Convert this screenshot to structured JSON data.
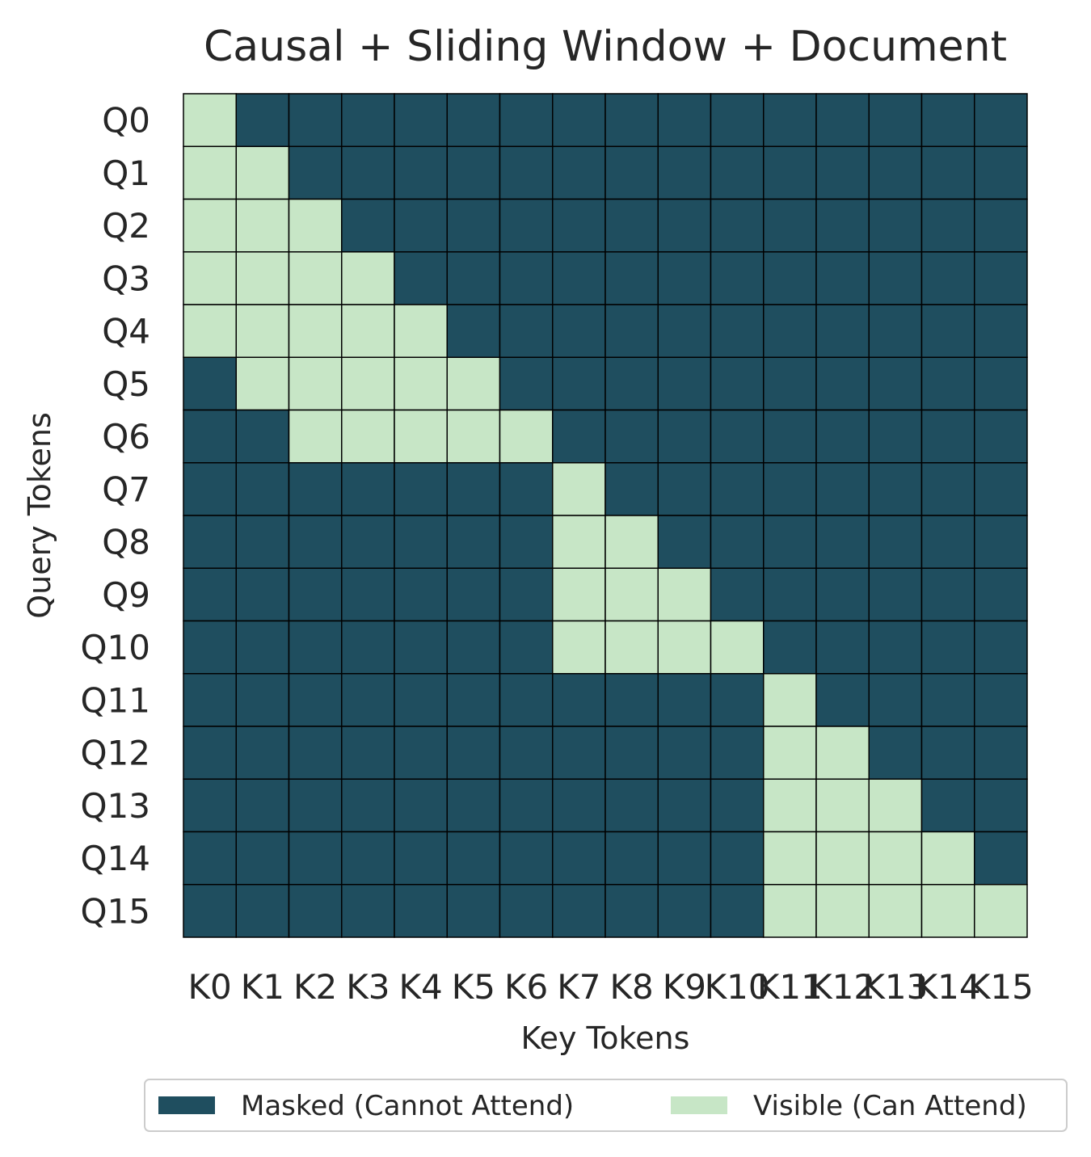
{
  "chart_data": {
    "type": "heatmap",
    "title": "Causal + Sliding Window + Document",
    "xlabel": "Key Tokens",
    "ylabel": "Query Tokens",
    "x_tick_labels": [
      "K0",
      "K1",
      "K2",
      "K3",
      "K4",
      "K5",
      "K6",
      "K7",
      "K8",
      "K9",
      "K10",
      "K11",
      "K12",
      "K13",
      "K14",
      "K15"
    ],
    "y_tick_labels": [
      "Q0",
      "Q1",
      "Q2",
      "Q3",
      "Q4",
      "Q5",
      "Q6",
      "Q7",
      "Q8",
      "Q9",
      "Q10",
      "Q11",
      "Q12",
      "Q13",
      "Q14",
      "Q15"
    ],
    "values": [
      [
        1,
        0,
        0,
        0,
        0,
        0,
        0,
        0,
        0,
        0,
        0,
        0,
        0,
        0,
        0,
        0
      ],
      [
        1,
        1,
        0,
        0,
        0,
        0,
        0,
        0,
        0,
        0,
        0,
        0,
        0,
        0,
        0,
        0
      ],
      [
        1,
        1,
        1,
        0,
        0,
        0,
        0,
        0,
        0,
        0,
        0,
        0,
        0,
        0,
        0,
        0
      ],
      [
        1,
        1,
        1,
        1,
        0,
        0,
        0,
        0,
        0,
        0,
        0,
        0,
        0,
        0,
        0,
        0
      ],
      [
        1,
        1,
        1,
        1,
        1,
        0,
        0,
        0,
        0,
        0,
        0,
        0,
        0,
        0,
        0,
        0
      ],
      [
        0,
        1,
        1,
        1,
        1,
        1,
        0,
        0,
        0,
        0,
        0,
        0,
        0,
        0,
        0,
        0
      ],
      [
        0,
        0,
        1,
        1,
        1,
        1,
        1,
        0,
        0,
        0,
        0,
        0,
        0,
        0,
        0,
        0
      ],
      [
        0,
        0,
        0,
        0,
        0,
        0,
        0,
        1,
        0,
        0,
        0,
        0,
        0,
        0,
        0,
        0
      ],
      [
        0,
        0,
        0,
        0,
        0,
        0,
        0,
        1,
        1,
        0,
        0,
        0,
        0,
        0,
        0,
        0
      ],
      [
        0,
        0,
        0,
        0,
        0,
        0,
        0,
        1,
        1,
        1,
        0,
        0,
        0,
        0,
        0,
        0
      ],
      [
        0,
        0,
        0,
        0,
        0,
        0,
        0,
        1,
        1,
        1,
        1,
        0,
        0,
        0,
        0,
        0
      ],
      [
        0,
        0,
        0,
        0,
        0,
        0,
        0,
        0,
        0,
        0,
        0,
        1,
        0,
        0,
        0,
        0
      ],
      [
        0,
        0,
        0,
        0,
        0,
        0,
        0,
        0,
        0,
        0,
        0,
        1,
        1,
        0,
        0,
        0
      ],
      [
        0,
        0,
        0,
        0,
        0,
        0,
        0,
        0,
        0,
        0,
        0,
        1,
        1,
        1,
        0,
        0
      ],
      [
        0,
        0,
        0,
        0,
        0,
        0,
        0,
        0,
        0,
        0,
        0,
        1,
        1,
        1,
        1,
        0
      ],
      [
        0,
        0,
        0,
        0,
        0,
        0,
        0,
        0,
        0,
        0,
        0,
        1,
        1,
        1,
        1,
        1
      ]
    ],
    "legend": [
      {
        "label": "Masked (Cannot Attend)",
        "value": 0,
        "color": "#1f4e5f"
      },
      {
        "label": "Visible (Can Attend)",
        "value": 1,
        "color": "#c7e6c6"
      }
    ],
    "legend_position": "bottom",
    "grid_line_color": "#000000"
  }
}
